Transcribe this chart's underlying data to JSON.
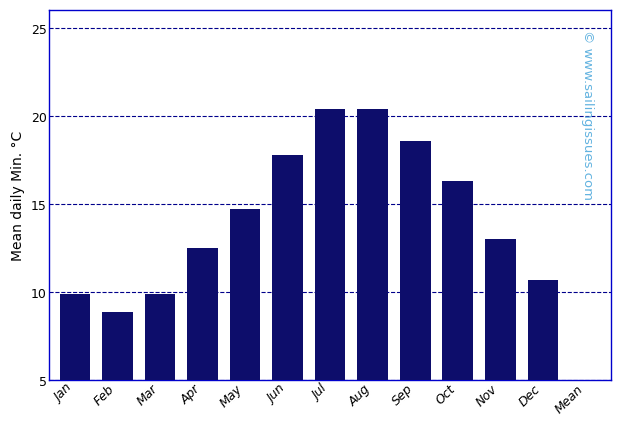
{
  "categories": [
    "Jan",
    "Feb",
    "Mar",
    "Apr",
    "May",
    "Jun",
    "Jul",
    "Aug",
    "Sep",
    "Oct",
    "Nov",
    "Dec",
    "Mean"
  ],
  "values": [
    9.9,
    8.9,
    9.9,
    12.5,
    14.7,
    17.8,
    20.4,
    20.4,
    18.6,
    16.3,
    13.0,
    10.7,
    null
  ],
  "bar_color": "#0d0d6b",
  "ylabel": "Mean daily Min. °C",
  "ylim": [
    5,
    26
  ],
  "yticks": [
    5,
    10,
    15,
    20,
    25
  ],
  "grid_color": "#00008B",
  "grid_linestyle": "--",
  "grid_linewidth": 0.8,
  "background_color": "#ffffff",
  "watermark_line1": "© www.sailingissues.com",
  "watermark_color": "#63b3e0",
  "watermark_fontsize": 9.5,
  "spine_color": "#0000cc",
  "ylabel_fontsize": 10,
  "xlabel_fontsize": 9,
  "bar_width": 0.72
}
